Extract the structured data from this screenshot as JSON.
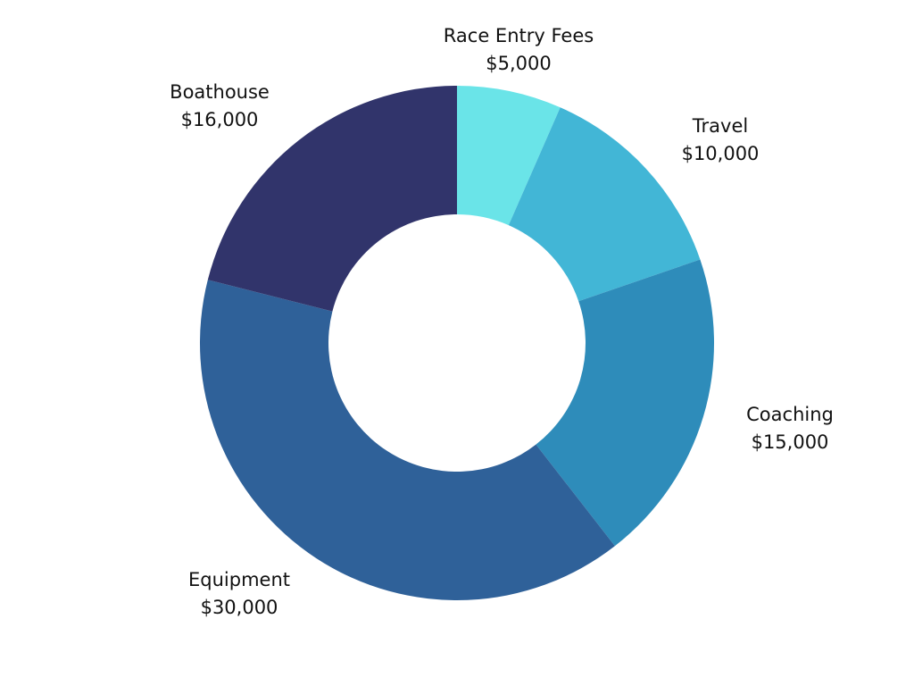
{
  "chart_data": {
    "type": "pie",
    "title": "",
    "categories": [
      "Race Entry Fees",
      "Travel",
      "Coaching",
      "Equipment",
      "Boathouse"
    ],
    "values": [
      5000,
      10000,
      15000,
      30000,
      16000
    ],
    "value_labels": [
      "$5,000",
      "$10,000",
      "$15,000",
      "$30,000",
      "$16,000"
    ],
    "colors": [
      "#6ae4e8",
      "#42b6d6",
      "#2e8cba",
      "#2f6199",
      "#31346b"
    ],
    "legend": "none",
    "donut": true
  }
}
